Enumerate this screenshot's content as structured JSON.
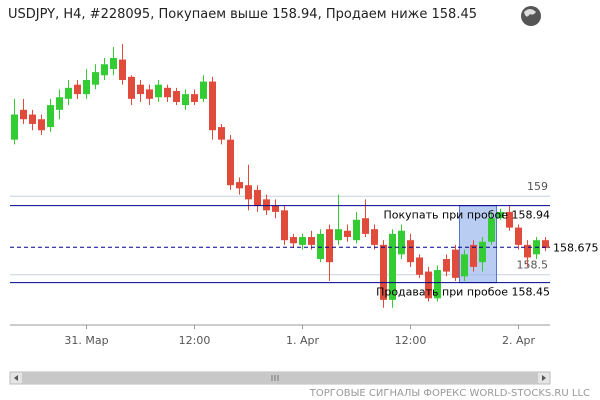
{
  "chart_data": {
    "type": "candlestick",
    "title": "USDJPY, H4, #228095, Покупаем выше 158.94, Продаем ниже 158.45",
    "footer": "ТОРГОВЫЕ СИГНАЛЫ ФОРЕКС WORLD-STOCKS.RU LLC",
    "categories": [
      null,
      null,
      null,
      null,
      null,
      null,
      null,
      null,
      "31. Мар",
      null,
      null,
      null,
      null,
      null,
      null,
      null,
      null,
      null,
      null,
      null,
      "12:00",
      null,
      null,
      null,
      null,
      null,
      null,
      null,
      null,
      null,
      null,
      null,
      "1. Apr",
      null,
      null,
      null,
      null,
      null,
      null,
      null,
      null,
      null,
      null,
      null,
      "12:00",
      null,
      null,
      null,
      null,
      null,
      null,
      null,
      null,
      null,
      null,
      null,
      "2. Apr",
      null,
      null,
      null
    ],
    "open": [
      159.36,
      159.55,
      159.52,
      159.49,
      159.44,
      159.55,
      159.62,
      159.71,
      159.65,
      159.71,
      159.77,
      159.81,
      159.87,
      159.76,
      159.71,
      159.68,
      159.63,
      159.69,
      159.67,
      159.58,
      159.65,
      159.62,
      159.73,
      159.44,
      159.36,
      159.09,
      159.07,
      159.04,
      158.98,
      158.94,
      158.91,
      158.74,
      158.69,
      158.74,
      158.6,
      158.79,
      158.72,
      158.78,
      158.72,
      158.86,
      158.79,
      158.69,
      158.34,
      158.63,
      158.72,
      158.61,
      158.52,
      158.35,
      158.6,
      158.66,
      158.49,
      158.69,
      158.58,
      158.71,
      158.86,
      158.9,
      158.8,
      158.69,
      158.63,
      158.72
    ],
    "high": [
      159.62,
      159.62,
      159.55,
      159.52,
      159.62,
      159.68,
      159.74,
      159.74,
      159.81,
      159.84,
      159.88,
      159.95,
      159.97,
      159.77,
      159.74,
      159.71,
      159.74,
      159.71,
      159.69,
      159.68,
      159.68,
      159.77,
      159.76,
      159.46,
      159.39,
      159.12,
      159.2,
      159.07,
      159.01,
      158.98,
      158.94,
      158.76,
      158.76,
      158.78,
      158.79,
      158.82,
      159.01,
      158.82,
      158.9,
      158.98,
      158.82,
      158.72,
      158.79,
      158.82,
      158.76,
      158.63,
      158.55,
      158.56,
      158.63,
      158.69,
      158.66,
      158.72,
      158.74,
      158.9,
      158.92,
      158.94,
      158.82,
      158.72,
      158.74,
      158.74
    ],
    "low": [
      159.33,
      159.46,
      159.42,
      159.39,
      159.41,
      159.49,
      159.58,
      159.62,
      159.62,
      159.68,
      159.74,
      159.77,
      159.71,
      159.58,
      159.6,
      159.58,
      159.6,
      159.6,
      159.58,
      159.55,
      159.58,
      159.6,
      159.36,
      159.33,
      159.04,
      159.01,
      158.91,
      158.9,
      158.88,
      158.86,
      158.69,
      158.67,
      158.66,
      158.66,
      158.58,
      158.46,
      158.69,
      158.71,
      158.7,
      158.74,
      158.66,
      158.29,
      158.29,
      158.6,
      158.55,
      158.48,
      158.33,
      158.33,
      158.49,
      158.46,
      158.46,
      158.52,
      158.52,
      158.69,
      158.85,
      158.78,
      158.66,
      158.55,
      158.6,
      158.65
    ],
    "close": [
      159.52,
      159.49,
      159.46,
      159.42,
      159.58,
      159.63,
      159.69,
      159.65,
      159.74,
      159.79,
      159.84,
      159.88,
      159.74,
      159.62,
      159.65,
      159.62,
      159.71,
      159.63,
      159.6,
      159.65,
      159.6,
      159.73,
      159.42,
      159.36,
      159.07,
      159.05,
      158.98,
      158.94,
      158.91,
      158.9,
      158.72,
      158.7,
      158.74,
      158.69,
      158.76,
      158.58,
      158.79,
      158.74,
      158.85,
      158.76,
      158.69,
      158.34,
      158.76,
      158.78,
      158.58,
      158.5,
      158.35,
      158.53,
      158.52,
      158.48,
      158.63,
      158.55,
      158.71,
      158.86,
      158.9,
      158.8,
      158.69,
      158.61,
      158.72,
      158.67
    ],
    "up_color": "#33cc33",
    "down_color": "#e04b3c",
    "ylim": [
      158.18,
      160.09
    ],
    "yticks": [
      158.5,
      159
    ],
    "grid": true,
    "levels": [
      {
        "value": 158.94,
        "label": "Покупать при пробое 158.94",
        "color": "#00008b",
        "dashed": false
      },
      {
        "value": 158.45,
        "label": "Продавать при пробое 158.45",
        "color": "#00008b",
        "dashed": false
      },
      {
        "value": 158.675,
        "label": "158.675",
        "color": "#00008b",
        "dashed": true
      }
    ]
  }
}
